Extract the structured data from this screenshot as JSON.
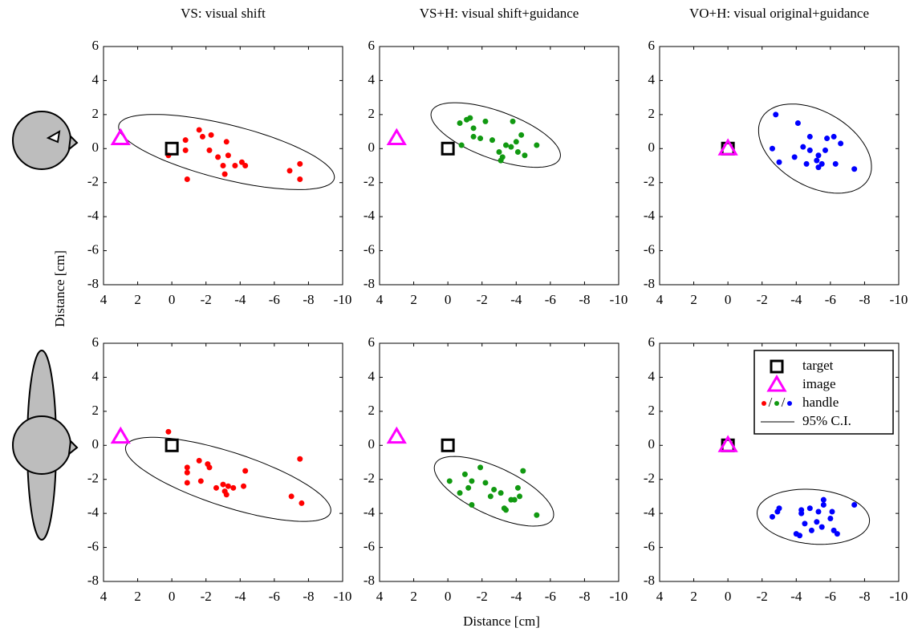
{
  "axis_labels": {
    "x": "Distance [cm]",
    "y": "Distance [cm]"
  },
  "chart_data": [
    {
      "type": "scatter",
      "title": "VS: visual shift",
      "xlim": [
        4,
        -10
      ],
      "ylim": [
        -8,
        6
      ],
      "xticks": [
        4,
        2,
        0,
        -2,
        -4,
        -6,
        -8,
        -10
      ],
      "yticks": [
        6,
        4,
        2,
        0,
        -2,
        -4,
        -6,
        -8
      ],
      "series": [
        {
          "marker": "square",
          "color": "#000000",
          "x": [
            0
          ],
          "values": [
            0
          ]
        },
        {
          "marker": "triangle",
          "color": "#ff00ff",
          "x": [
            3
          ],
          "values": [
            0.6
          ]
        },
        {
          "marker": "circle",
          "color": "#ff0000",
          "x": [
            0.2,
            -0.8,
            -0.8,
            -0.9,
            -1.6,
            -1.8,
            -2.3,
            -2.2,
            -2.7,
            -3.0,
            -3.1,
            -3.2,
            -3.3,
            -3.7,
            -4.1,
            -4.3,
            -6.9,
            -7.5,
            -7.5
          ],
          "values": [
            -0.4,
            0.5,
            -0.1,
            -1.8,
            1.1,
            0.7,
            0.8,
            -0.1,
            -0.5,
            -1.0,
            -1.5,
            0.4,
            -0.4,
            -1.0,
            -0.8,
            -1.0,
            -1.3,
            -0.9,
            -1.8
          ]
        }
      ],
      "ellipse": {
        "cx": -3.2,
        "cy": -0.2,
        "a": 6.5,
        "b": 1.6,
        "angle": 14
      }
    },
    {
      "type": "scatter",
      "title": "VS+H: visual shift+guidance",
      "xlim": [
        4,
        -10
      ],
      "ylim": [
        -8,
        6
      ],
      "xticks": [
        4,
        2,
        0,
        -2,
        -4,
        -6,
        -8,
        -10
      ],
      "yticks": [
        6,
        4,
        2,
        0,
        -2,
        -4,
        -6,
        -8
      ],
      "series": [
        {
          "marker": "square",
          "color": "#000000",
          "x": [
            0
          ],
          "values": [
            0
          ]
        },
        {
          "marker": "triangle",
          "color": "#ff00ff",
          "x": [
            3
          ],
          "values": [
            0.6
          ]
        },
        {
          "marker": "circle",
          "color": "#119911",
          "x": [
            -0.7,
            -1.1,
            -1.3,
            -1.5,
            -1.5,
            -1.9,
            -0.8,
            -2.2,
            -2.6,
            -3.0,
            -3.1,
            -3.2,
            -3.4,
            -3.7,
            -3.8,
            -4.0,
            -4.1,
            -4.3,
            -4.5,
            -5.2
          ],
          "values": [
            1.5,
            1.7,
            1.8,
            1.2,
            0.7,
            0.6,
            0.2,
            1.6,
            0.5,
            -0.2,
            -0.7,
            -0.5,
            0.2,
            0.1,
            1.6,
            0.4,
            -0.2,
            0.8,
            -0.4,
            0.2
          ]
        }
      ],
      "ellipse": {
        "cx": -2.8,
        "cy": 0.8,
        "a": 4.0,
        "b": 1.4,
        "angle": 20
      }
    },
    {
      "type": "scatter",
      "title": "VO+H: visual original+guidance",
      "xlim": [
        4,
        -10
      ],
      "ylim": [
        -8,
        6
      ],
      "xticks": [
        4,
        2,
        0,
        -2,
        -4,
        -6,
        -8,
        -10
      ],
      "yticks": [
        6,
        4,
        2,
        0,
        -2,
        -4,
        -6,
        -8
      ],
      "series": [
        {
          "marker": "square",
          "color": "#000000",
          "x": [
            0
          ],
          "values": [
            0
          ]
        },
        {
          "marker": "triangle",
          "color": "#ff00ff",
          "x": [
            0
          ],
          "values": [
            0
          ]
        },
        {
          "marker": "circle",
          "color": "#0000ff",
          "x": [
            -2.8,
            -2.6,
            -3.0,
            -3.9,
            -4.1,
            -4.4,
            -4.6,
            -4.8,
            -4.8,
            -5.2,
            -5.3,
            -5.3,
            -5.5,
            -5.7,
            -5.8,
            -6.2,
            -6.3,
            -6.6,
            -7.4
          ],
          "values": [
            2.0,
            0,
            -0.8,
            -0.5,
            1.5,
            0.1,
            -0.9,
            0.7,
            -0.1,
            -0.7,
            -0.4,
            -1.1,
            -0.9,
            -0.1,
            0.6,
            0.7,
            -0.9,
            0.3,
            -1.2
          ]
        }
      ],
      "ellipse": {
        "cx": -5.1,
        "cy": 0.0,
        "a": 3.6,
        "b": 2.2,
        "angle": 30
      }
    },
    {
      "type": "scatter",
      "xlim": [
        4,
        -10
      ],
      "ylim": [
        -8,
        6
      ],
      "xticks": [
        4,
        2,
        0,
        -2,
        -4,
        -6,
        -8,
        -10
      ],
      "yticks": [
        6,
        4,
        2,
        0,
        -2,
        -4,
        -6,
        -8
      ],
      "series": [
        {
          "marker": "square",
          "color": "#000000",
          "x": [
            0
          ],
          "values": [
            0
          ]
        },
        {
          "marker": "triangle",
          "color": "#ff00ff",
          "x": [
            3
          ],
          "values": [
            0.5
          ]
        },
        {
          "marker": "circle",
          "color": "#ff0000",
          "x": [
            0.2,
            -0.9,
            -0.9,
            -0.9,
            -1.6,
            -1.7,
            -2.1,
            -2.2,
            -2.6,
            -3.0,
            -3.1,
            -3.2,
            -3.3,
            -3.6,
            -4.2,
            -4.3,
            -7.0,
            -7.5,
            -7.6
          ],
          "values": [
            0.8,
            -1.3,
            -1.6,
            -2.2,
            -0.9,
            -2.1,
            -1.1,
            -1.3,
            -2.5,
            -2.3,
            -2.7,
            -2.9,
            -2.4,
            -2.5,
            -2.4,
            -1.5,
            -3.0,
            -0.8,
            -3.4
          ]
        }
      ],
      "ellipse": {
        "cx": -3.3,
        "cy": -2.0,
        "a": 6.3,
        "b": 1.6,
        "angle": 18
      }
    },
    {
      "type": "scatter",
      "xlim": [
        4,
        -10
      ],
      "ylim": [
        -8,
        6
      ],
      "xticks": [
        4,
        2,
        0,
        -2,
        -4,
        -6,
        -8,
        -10
      ],
      "yticks": [
        6,
        4,
        2,
        0,
        -2,
        -4,
        -6,
        -8
      ],
      "series": [
        {
          "marker": "square",
          "color": "#000000",
          "x": [
            0
          ],
          "values": [
            0
          ]
        },
        {
          "marker": "triangle",
          "color": "#ff00ff",
          "x": [
            3
          ],
          "values": [
            0.5
          ]
        },
        {
          "marker": "circle",
          "color": "#119911",
          "x": [
            -0.1,
            -0.7,
            -1.0,
            -1.2,
            -1.4,
            -1.4,
            -1.9,
            -2.2,
            -2.5,
            -2.7,
            -3.1,
            -3.3,
            -3.4,
            -3.7,
            -3.9,
            -4.1,
            -4.2,
            -4.4,
            -5.2
          ],
          "values": [
            -2.1,
            -2.8,
            -1.7,
            -2.5,
            -2.1,
            -3.5,
            -1.3,
            -2.2,
            -3.0,
            -2.6,
            -2.8,
            -3.7,
            -3.8,
            -3.2,
            -3.2,
            -2.5,
            -3.0,
            -1.5,
            -4.1
          ]
        }
      ],
      "ellipse": {
        "cx": -2.7,
        "cy": -2.7,
        "a": 3.8,
        "b": 1.4,
        "angle": 25
      }
    },
    {
      "type": "scatter",
      "xlim": [
        4,
        -10
      ],
      "ylim": [
        -8,
        6
      ],
      "xticks": [
        4,
        2,
        0,
        -2,
        -4,
        -6,
        -8,
        -10
      ],
      "yticks": [
        6,
        4,
        2,
        0,
        -2,
        -4,
        -6,
        -8
      ],
      "legend": "upper right",
      "legend_handle_colors": [
        "#ff0000",
        "#119911",
        "#0000ff"
      ],
      "legend_separator": "/",
      "series": [
        {
          "name": "target",
          "marker": "square",
          "color": "#000000",
          "x": [
            0
          ],
          "values": [
            0
          ]
        },
        {
          "name": "image",
          "marker": "triangle",
          "color": "#ff00ff",
          "x": [
            0
          ],
          "values": [
            0
          ]
        },
        {
          "name": "handle",
          "marker": "circle",
          "color": "#0000ff",
          "x": [
            -2.6,
            -2.9,
            -3.0,
            -4.0,
            -4.2,
            -4.3,
            -4.3,
            -4.5,
            -4.8,
            -4.9,
            -5.2,
            -5.3,
            -5.5,
            -5.6,
            -5.6,
            -6.0,
            -6.2,
            -6.4,
            -7.4,
            -6.1
          ],
          "values": [
            -4.2,
            -3.9,
            -3.7,
            -5.2,
            -5.3,
            -4.0,
            -3.8,
            -4.6,
            -3.7,
            -5.0,
            -4.5,
            -3.9,
            -4.8,
            -3.2,
            -3.5,
            -4.3,
            -5.0,
            -5.2,
            -3.5,
            -3.9
          ]
        }
      ],
      "ellipse": {
        "name": "95% C.I.",
        "cx": -5.0,
        "cy": -4.2,
        "a": 3.3,
        "b": 1.6,
        "angle": 5
      }
    }
  ]
}
